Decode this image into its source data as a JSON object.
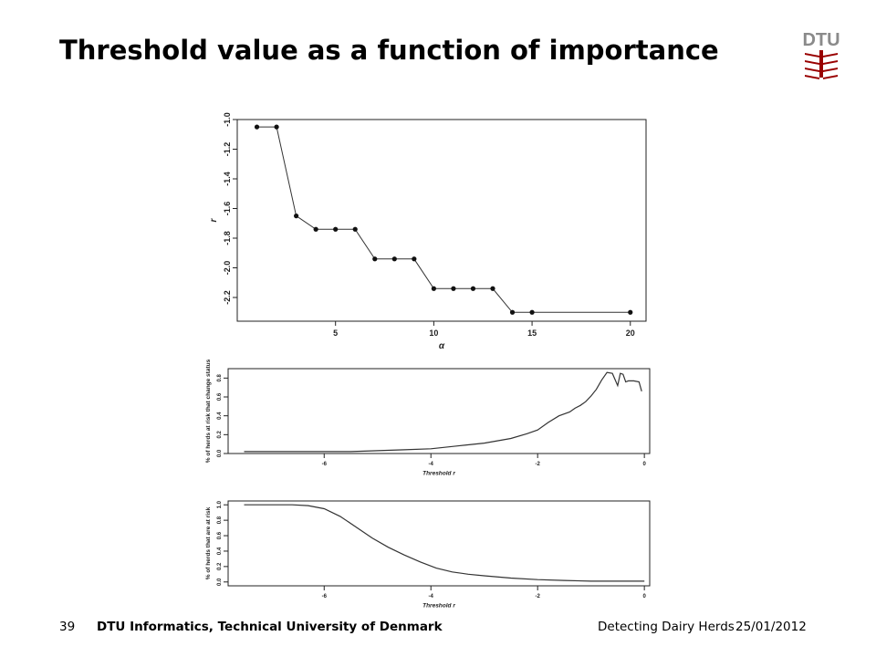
{
  "slide": {
    "title": "Threshold value as a function of importance",
    "logo_text": "DTU",
    "brand_color": "#990000"
  },
  "footer": {
    "page_number": "39",
    "organization": "DTU Informatics, Technical University of Denmark",
    "talk_title": "Detecting Dairy Herds",
    "date": "25/01/2012"
  },
  "chart_data": [
    {
      "type": "line",
      "xlabel": "α",
      "ylabel": "r",
      "xlim": [
        0,
        20.8
      ],
      "ylim": [
        -2.36,
        -1.0
      ],
      "xticks": [
        5,
        10,
        15,
        20
      ],
      "yticks": [
        -1.0,
        -1.2,
        -1.4,
        -1.6,
        -1.8,
        -2.0,
        -2.2
      ],
      "x": [
        1,
        2,
        3,
        4,
        5,
        6,
        7,
        8,
        9,
        10,
        11,
        12,
        13,
        14,
        15,
        20
      ],
      "y": [
        -1.05,
        -1.05,
        -1.65,
        -1.74,
        -1.74,
        -1.74,
        -1.94,
        -1.94,
        -1.94,
        -2.14,
        -2.14,
        -2.14,
        -2.14,
        -2.3,
        -2.3,
        -2.3
      ],
      "markers": true
    },
    {
      "type": "line",
      "xlabel": "Threshold r",
      "ylabel": "% of herds at risk that change status",
      "xlim": [
        -7.8,
        0.1
      ],
      "ylim": [
        0,
        0.9
      ],
      "xticks": [
        -6,
        -4,
        -2,
        0
      ],
      "yticks": [
        0.0,
        0.2,
        0.4,
        0.6,
        0.8
      ],
      "x": [
        -7.5,
        -6.0,
        -5.5,
        -5.0,
        -4.5,
        -4.0,
        -3.5,
        -3.0,
        -2.5,
        -2.2,
        -2.0,
        -1.8,
        -1.6,
        -1.4,
        -1.3,
        -1.2,
        -1.1,
        -1.0,
        -0.9,
        -0.8,
        -0.7,
        -0.6,
        -0.5,
        -0.45,
        -0.4,
        -0.35,
        -0.3,
        -0.2,
        -0.1,
        -0.05
      ],
      "y": [
        0.02,
        0.02,
        0.02,
        0.03,
        0.04,
        0.05,
        0.08,
        0.11,
        0.16,
        0.21,
        0.25,
        0.33,
        0.4,
        0.44,
        0.48,
        0.51,
        0.55,
        0.61,
        0.68,
        0.78,
        0.86,
        0.85,
        0.72,
        0.85,
        0.84,
        0.76,
        0.77,
        0.77,
        0.76,
        0.66
      ]
    },
    {
      "type": "line",
      "xlabel": "Threshold r",
      "ylabel": "% of herds that are at risk",
      "xlim": [
        -7.8,
        0.1
      ],
      "ylim": [
        -0.05,
        1.05
      ],
      "xticks": [
        -6,
        -4,
        -2,
        0
      ],
      "yticks": [
        0.0,
        0.2,
        0.4,
        0.6,
        0.8,
        1.0
      ],
      "x": [
        -7.5,
        -6.6,
        -6.3,
        -6.0,
        -5.7,
        -5.4,
        -5.1,
        -4.8,
        -4.5,
        -4.2,
        -3.9,
        -3.6,
        -3.3,
        -3.0,
        -2.5,
        -2.0,
        -1.5,
        -1.0,
        -0.5,
        0.0
      ],
      "y": [
        1.0,
        1.0,
        0.99,
        0.95,
        0.85,
        0.71,
        0.57,
        0.45,
        0.35,
        0.26,
        0.18,
        0.13,
        0.1,
        0.08,
        0.05,
        0.03,
        0.02,
        0.01,
        0.01,
        0.01
      ]
    }
  ]
}
